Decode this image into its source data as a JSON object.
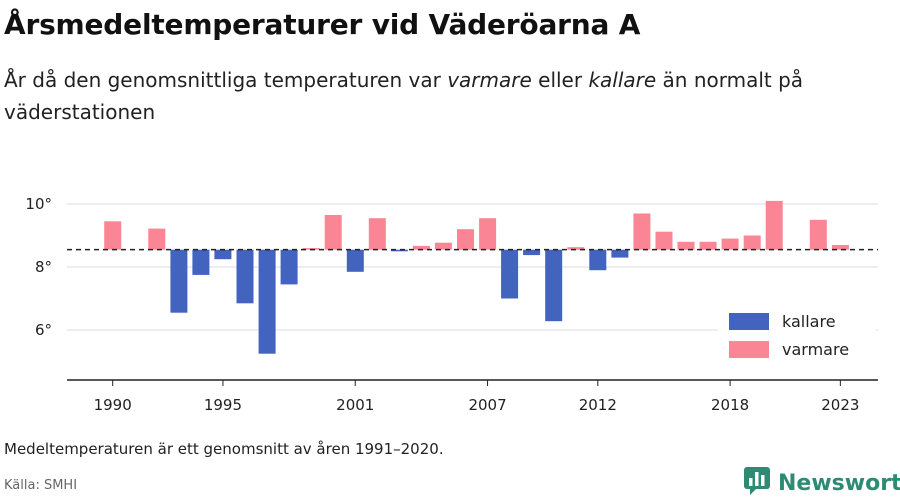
{
  "header": {
    "title": "Årsmedeltemperaturer vid Väderöarna A",
    "subtitle_part1": "År då den genomsnittliga temperaturen var ",
    "subtitle_em1": "varmare",
    "subtitle_part2": " eller ",
    "subtitle_em2": "kallare",
    "subtitle_part3": " än normalt på väderstationen"
  },
  "footer": {
    "note": "Medeltemperaturen är ett genomsnitt av åren 1991–2020.",
    "source": "Källa: SMHI",
    "brand": "Newsworthy"
  },
  "colors": {
    "colder": "#4263be",
    "warmer": "#f98595",
    "brand": "#2e8b73"
  },
  "chart_data": {
    "type": "bar",
    "normal": 8.55,
    "ylim": [
      4.5,
      10.6
    ],
    "yticks": [
      6,
      8,
      10
    ],
    "ytick_suffix": "°",
    "xticks": [
      1990,
      1995,
      2001,
      2007,
      2012,
      2018,
      2023
    ],
    "x": [
      1990,
      1991,
      1992,
      1993,
      1994,
      1995,
      1996,
      1997,
      1998,
      1999,
      2000,
      2001,
      2002,
      2003,
      2004,
      2005,
      2006,
      2007,
      2008,
      2009,
      2010,
      2011,
      2012,
      2013,
      2014,
      2015,
      2016,
      2017,
      2018,
      2019,
      2020,
      2021,
      2022,
      2023
    ],
    "values": [
      9.45,
      null,
      9.22,
      6.55,
      7.75,
      8.25,
      6.85,
      5.25,
      7.45,
      8.6,
      9.65,
      7.85,
      9.55,
      8.5,
      8.67,
      8.77,
      9.2,
      9.55,
      7.0,
      8.38,
      6.28,
      8.63,
      7.9,
      8.3,
      9.7,
      9.12,
      8.8,
      8.8,
      8.9,
      9.0,
      10.1,
      null,
      9.5,
      8.7
    ],
    "series": [
      {
        "name": "kallare"
      },
      {
        "name": "varmare"
      }
    ],
    "legend_position": "bottom-right",
    "grid": true
  }
}
